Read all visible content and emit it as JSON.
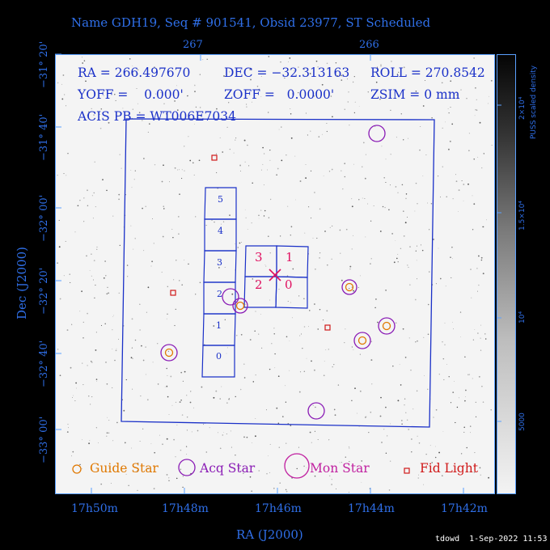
{
  "title": "Name GDH19, Seq # 901541, Obsid 23977, ST Scheduled",
  "top_ticks": [
    "267",
    "266"
  ],
  "bottom_ticks": [
    "17h50m",
    "17h48m",
    "17h46m",
    "17h44m",
    "17h42m"
  ],
  "left_ticks": [
    "−31° 20'",
    "−31° 40'",
    "−32° 00'",
    "−32° 20'",
    "−32° 40'",
    "−33° 00'"
  ],
  "xlabel": "RA (J2000)",
  "ylabel": "Dec (J2000)",
  "info": {
    "ra": "RA = 266.497670",
    "dec": "DEC = −32.313163",
    "roll": "ROLL = 270.8542",
    "yoff": "YOFF =    0.000'",
    "zoff": "ZOFF =   0.0000'",
    "zsim": "ZSIM = 0 mm",
    "acis": "ACIS PB = WT006E7034"
  },
  "ccds": {
    "s": [
      "5",
      "4",
      "3",
      "2",
      "1",
      "0"
    ],
    "i": [
      "3",
      "1",
      "2",
      "0"
    ]
  },
  "legend": {
    "guide": "Guide Star",
    "acq": "Acq Star",
    "mon": "Mon Star",
    "fid": "Fid Light"
  },
  "colorbar": {
    "title": "PUSS scaled density",
    "ticks": [
      "2×10⁴",
      "1.5×10⁴",
      "10⁴",
      "5000"
    ]
  },
  "footer": "tdowd  1-Sep-2022 11:53",
  "colors": {
    "accent": "#2f6fe8",
    "frame": "#1a30c8",
    "guide": "#e07800",
    "acq": "#8a1bb5",
    "mon": "#c020a0",
    "fid": "#d01818",
    "marker": "#e01060"
  }
}
